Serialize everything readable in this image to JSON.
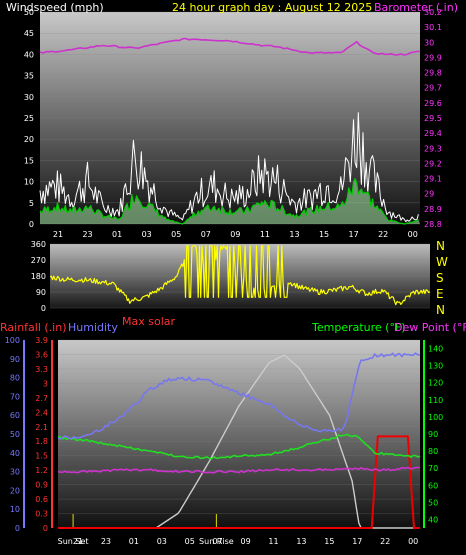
{
  "header": {
    "windspeed_label": "Windspeed (mph)",
    "title": "24 hour graph day : August 12 2025",
    "barometer_label": "Barometer (.in)"
  },
  "mid": {
    "max_solar_label": "Max solar",
    "directions": [
      "N",
      "W",
      "S",
      "E",
      "N"
    ]
  },
  "lower": {
    "rainfall_label": "Rainfall (.in)",
    "humidity_label": "Humidity",
    "temperature_label": "Temperature (°F)",
    "dewpoint_label": "Dew Point (°F)",
    "sunset_label": "Sun Set",
    "sunrise_label": "Sun Rise"
  },
  "colors": {
    "wind_gust": "#ffffff",
    "wind_avg": "#00cc00",
    "wind_fill": "#a8e8a8",
    "barometer": "#cc33cc",
    "wind_dir": "#ffff00",
    "humidity": "#7777ee",
    "temperature": "#22dd22",
    "dewpoint": "#cc33cc",
    "solar": "#cccccc",
    "rain": "#ee0000",
    "rain_axis": "#ff3333",
    "humidity_axis": "#7777ff",
    "temp_axis": "#00ff00"
  },
  "chart_data": [
    {
      "type": "line",
      "name": "windspeed_barometer",
      "x_tick_labels": [
        "21",
        "23",
        "01",
        "03",
        "05",
        "07",
        "09",
        "11",
        "13",
        "15",
        "17",
        "22",
        "00"
      ],
      "y_left_ticks": [
        "0",
        "5",
        "10",
        "15",
        "20",
        "25",
        "30",
        "35",
        "40",
        "45",
        "50"
      ],
      "y_left_range": [
        0,
        50
      ],
      "y_right_ticks": [
        "28.8",
        "28.9",
        "29",
        "29.1",
        "29.2",
        "29.3",
        "29.4",
        "29.5",
        "29.6",
        "29.7",
        "29.8",
        "29.9",
        "30",
        "30.1",
        "30.2"
      ],
      "y_right_range": [
        28.8,
        30.2
      ],
      "series": [
        {
          "name": "Windspeed (mph)",
          "x": [
            0,
            1,
            2,
            3,
            4,
            5,
            6,
            7,
            8,
            9,
            10,
            11,
            12,
            13,
            14,
            15,
            16,
            17,
            18,
            19,
            20,
            21,
            22,
            23,
            24
          ],
          "gust": [
            8,
            9,
            6,
            10,
            4,
            3,
            16,
            9,
            3,
            1,
            7,
            9,
            6,
            7,
            12,
            10,
            5,
            6,
            9,
            8,
            22,
            11,
            3,
            1,
            2
          ],
          "avg": [
            3,
            4,
            3,
            4,
            2,
            1,
            7,
            4,
            1,
            0,
            3,
            4,
            3,
            3,
            5,
            4,
            2,
            3,
            4,
            4,
            10,
            5,
            1,
            0,
            1
          ]
        },
        {
          "name": "Barometer (.in)",
          "x": [
            0,
            2,
            4,
            6,
            8,
            9,
            10,
            12,
            14,
            15,
            16,
            17,
            18,
            19,
            20,
            21,
            22,
            23,
            24
          ],
          "values": [
            29.93,
            29.95,
            29.98,
            29.96,
            30.0,
            30.02,
            30.02,
            30.01,
            29.98,
            29.97,
            29.95,
            29.93,
            29.93,
            29.93,
            30.0,
            29.93,
            29.92,
            29.92,
            29.94
          ]
        }
      ]
    },
    {
      "type": "line",
      "name": "wind_direction",
      "y_left_ticks": [
        "0",
        "90",
        "180",
        "270",
        "360"
      ],
      "y_range": [
        0,
        360
      ],
      "x": [
        0,
        1,
        2,
        3,
        4,
        5,
        6,
        7,
        8,
        9,
        10,
        11,
        12,
        13,
        14,
        15,
        16,
        17,
        18,
        19,
        20,
        21,
        22,
        23,
        24
      ],
      "values": [
        175,
        160,
        160,
        150,
        135,
        40,
        60,
        110,
        180,
        350,
        200,
        350,
        200,
        100,
        120,
        150,
        110,
        90,
        100,
        120,
        80,
        100,
        20,
        90,
        90
      ]
    },
    {
      "type": "line",
      "name": "rain_humidity_temperature_dewpoint",
      "x_tick_labels": [
        "21",
        "23",
        "01",
        "03",
        "05",
        "07",
        "09",
        "11",
        "13",
        "15",
        "17",
        "22",
        "00"
      ],
      "humidity_ticks": [
        "0",
        "10",
        "20",
        "30",
        "40",
        "50",
        "60",
        "70",
        "80",
        "90",
        "100"
      ],
      "humidity_range": [
        0,
        100
      ],
      "rain_ticks": [
        "0",
        "0.3",
        "0.6",
        "0.9",
        "1.2",
        "1.5",
        "1.8",
        "2.1",
        "2.4",
        "2.7",
        "3",
        "3.3",
        "3.6",
        "3.9"
      ],
      "rain_range": [
        0,
        3.9
      ],
      "temp_ticks": [
        "40",
        "50",
        "60",
        "70",
        "80",
        "90",
        "100",
        "110",
        "120",
        "130",
        "140"
      ],
      "temp_range": [
        35,
        145
      ],
      "series": [
        {
          "name": "Humidity",
          "x": [
            0,
            2,
            4,
            5,
            6,
            7,
            8,
            10,
            12,
            14,
            15,
            16,
            17,
            18,
            19,
            20,
            21,
            22,
            23,
            24
          ],
          "values": [
            48,
            49,
            58,
            65,
            73,
            78,
            80,
            78,
            72,
            66,
            60,
            55,
            52,
            52,
            53,
            88,
            92,
            92,
            92,
            93
          ]
        },
        {
          "name": "Temperature (°F)",
          "x": [
            0,
            2,
            4,
            6,
            8,
            10,
            12,
            14,
            15,
            16,
            17,
            18,
            19,
            20,
            21,
            22,
            23,
            24
          ],
          "values": [
            88,
            86,
            83,
            80,
            77,
            76,
            77,
            78,
            80,
            82,
            85,
            87,
            90,
            88,
            79,
            78,
            77,
            77
          ]
        },
        {
          "name": "Dew Point (°F)",
          "x": [
            0,
            2,
            4,
            6,
            8,
            10,
            12,
            14,
            16,
            18,
            20,
            21,
            22,
            23,
            24
          ],
          "values": [
            68,
            68,
            69,
            69,
            68,
            68,
            68,
            69,
            69,
            69,
            70,
            69,
            69,
            70,
            70
          ]
        },
        {
          "name": "Max solar",
          "x": [
            0,
            2,
            4,
            6,
            6.5,
            8,
            10,
            12,
            14,
            15,
            16,
            18,
            19.5,
            20,
            22,
            24
          ],
          "values": [
            0,
            0,
            0,
            0,
            0,
            8,
            35,
            65,
            88,
            92,
            85,
            60,
            25,
            0,
            0,
            0
          ]
        },
        {
          "name": "Rainfall (.in)",
          "x": [
            0,
            20.8,
            21.2,
            23.2,
            23.6,
            24
          ],
          "values": [
            0,
            0,
            1.9,
            1.9,
            0,
            0
          ]
        }
      ],
      "markers": [
        {
          "label": "Sun Set",
          "x": 1.0
        },
        {
          "label": "Sun Rise",
          "x": 10.5
        }
      ]
    }
  ]
}
